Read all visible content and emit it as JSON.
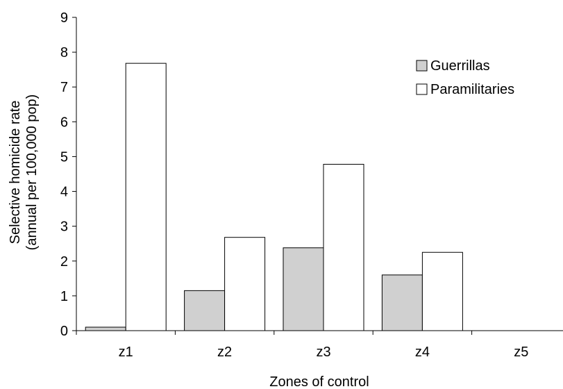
{
  "chart_data": {
    "type": "bar",
    "categories": [
      "z1",
      "z2",
      "z3",
      "z4",
      "z5"
    ],
    "series": [
      {
        "name": "Guerrillas",
        "values": [
          0.1,
          1.15,
          2.38,
          1.6,
          0
        ],
        "color": "#d0d0d0"
      },
      {
        "name": "Paramilitaries",
        "values": [
          7.68,
          2.68,
          4.78,
          2.25,
          0
        ],
        "color": "#ffffff"
      }
    ],
    "xlabel": "Zones of control",
    "ylabel_line1": "Selective homicide rate",
    "ylabel_line2": "(annual per 100,000 pop)",
    "ylim": [
      0,
      9
    ],
    "yticks": [
      "0",
      "1",
      "2",
      "3",
      "4",
      "5",
      "6",
      "7",
      "8",
      "9"
    ],
    "grid": false,
    "legend_position": "top-right"
  }
}
